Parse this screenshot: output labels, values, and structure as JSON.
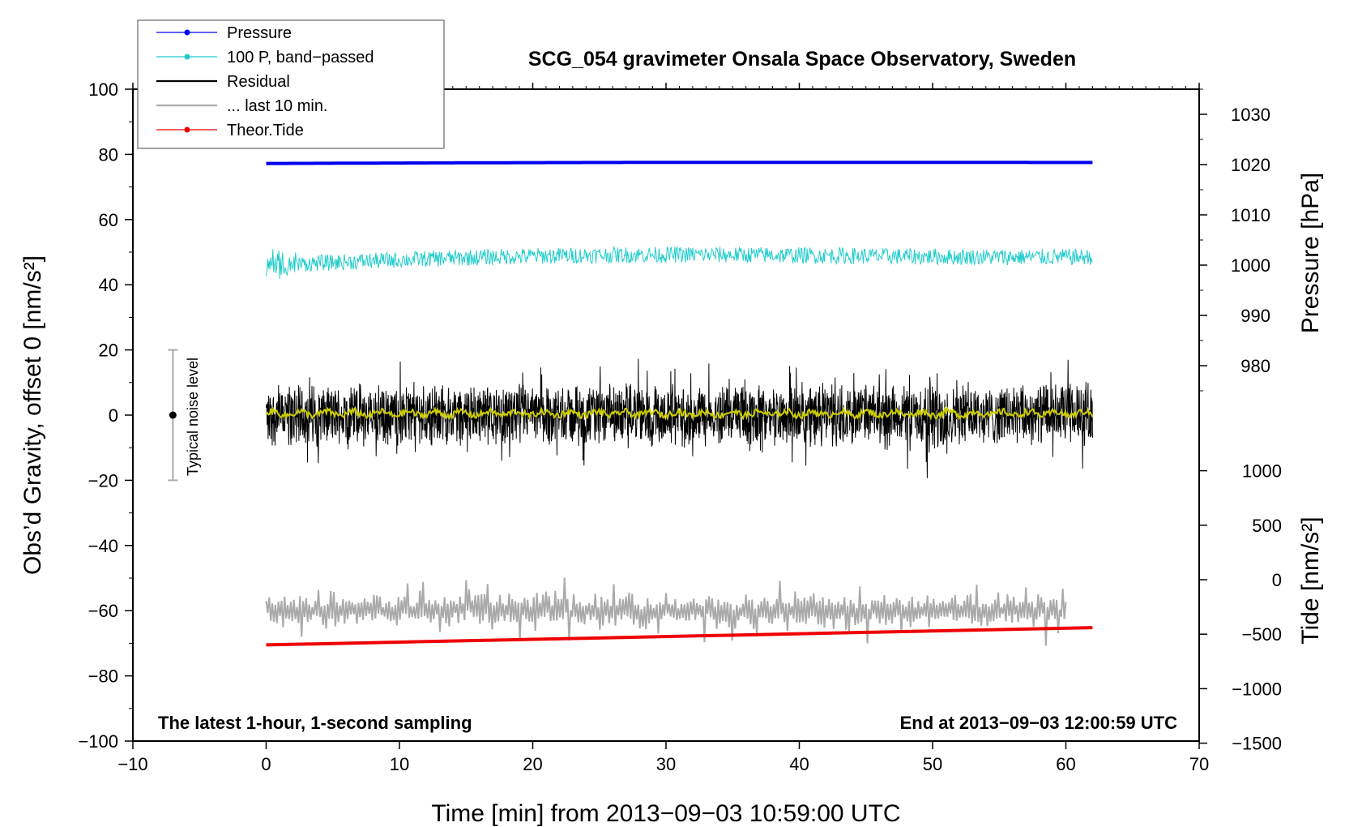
{
  "chart_data": {
    "type": "line",
    "title": "SCG_054 gravimeter Onsala Space Observatory, Sweden",
    "xlabel": "Time [min] from 2013−09−03 10:59:00 UTC",
    "ylabel_left": "Obs’d Gravity, offset 0 [nm/s²]",
    "ylabel_pressure": "Pressure [hPa]",
    "ylabel_tide": "Tide [nm/s²]",
    "xlim": [
      -10,
      70
    ],
    "ylim": [
      -100,
      100
    ],
    "xticks": [
      "−10",
      "0",
      "10",
      "20",
      "30",
      "40",
      "50",
      "60",
      "70"
    ],
    "yticks": [
      "100",
      "80",
      "60",
      "40",
      "20",
      "0",
      "−20",
      "−40",
      "−60",
      "−80",
      "−100"
    ],
    "pressure_ticks": [
      "1030",
      "1020",
      "1010",
      "1000",
      "990",
      "980"
    ],
    "pressure_tick_values": [
      1030,
      1020,
      1010,
      1000,
      990,
      980
    ],
    "tide_ticks": [
      "1000",
      "500",
      "0",
      "−500",
      "−1000",
      "−1500"
    ],
    "tide_tick_values": [
      1000,
      500,
      0,
      -500,
      -1000,
      -1500
    ],
    "corner_left": "The latest 1-hour, 1-second sampling",
    "corner_right": "End at 2013−09−03 12:00:59 UTC",
    "noise_label": "Typical noise level",
    "noise_bar": {
      "x": -7,
      "ymin": -20,
      "ymax": 20,
      "center": 0
    },
    "legend": [
      {
        "label": "Pressure",
        "color": "#0000ee",
        "marker": true
      },
      {
        "label": "100 P, band−passed",
        "color": "#22cccc",
        "marker": true
      },
      {
        "label": "Residual",
        "color": "#000000",
        "marker": false
      },
      {
        "label": "... last 10 min.",
        "color": "#aaaaaa",
        "marker": false
      },
      {
        "label": "Theor.Tide",
        "color": "#ee0000",
        "marker": true
      }
    ],
    "series": [
      {
        "name": "Pressure",
        "color": "#0000ee",
        "x_range": [
          0,
          62
        ],
        "y_start": 77.2,
        "y_end": 77.5
      },
      {
        "name": "100 P, band-passed",
        "color": "#22cccc",
        "x_range": [
          0,
          62
        ],
        "y_start": 46,
        "y_end": 50,
        "amplitude": 2.5
      },
      {
        "name": "Residual",
        "color": "#000000",
        "x_range": [
          0,
          62
        ],
        "y_center": 0,
        "amplitude": 10
      },
      {
        "name": "Residual smoothed",
        "color": "#cccc00",
        "x_range": [
          0,
          62
        ],
        "y_center": 0.5,
        "amplitude": 1
      },
      {
        "name": "... last 10 min.",
        "color": "#aaaaaa",
        "x_range": [
          0,
          60
        ],
        "y_center": -60,
        "amplitude": 8
      },
      {
        "name": "Theor.Tide",
        "color": "#ee0000",
        "x_range": [
          0,
          62
        ],
        "y_start": -70.5,
        "y_end": -65.2
      }
    ]
  }
}
